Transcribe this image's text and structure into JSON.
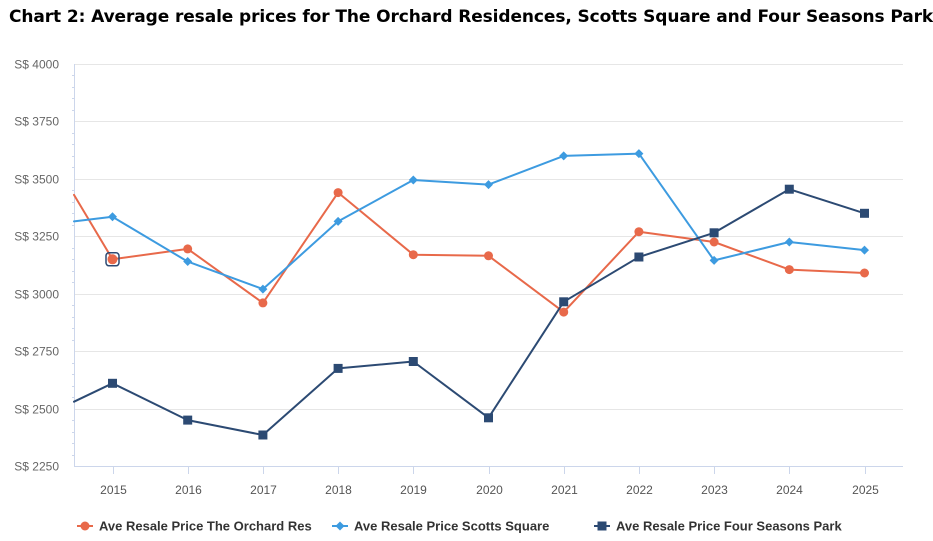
{
  "title": "Chart 2: Average resale prices for The Orchard Residences, Scotts Square and Four Seasons Park",
  "chart_data": {
    "type": "line",
    "title": "Chart 2: Average resale prices for The Orchard Residences, Scotts Square and Four Seasons Park",
    "xlabel": "",
    "ylabel": "",
    "categories": [
      "2015",
      "2016",
      "2017",
      "2018",
      "2019",
      "2020",
      "2021",
      "2022",
      "2023",
      "2024",
      "2025"
    ],
    "x_range": [
      2014.5,
      2025.5
    ],
    "ylim": [
      2250,
      4000
    ],
    "yticks": [
      2250,
      2500,
      2750,
      3000,
      3250,
      3500,
      3750,
      4000
    ],
    "ytick_prefix": "S$ ",
    "grid": true,
    "legend_position": "bottom",
    "series": [
      {
        "name": "Ave Resale Price The Orchard Res",
        "color": "#e8694a",
        "marker": "circle",
        "leading_value": 3430,
        "values": [
          3150,
          3195,
          2960,
          3440,
          3170,
          3165,
          2920,
          3270,
          3225,
          3105,
          3090
        ],
        "highlighted_index": 0
      },
      {
        "name": "Ave Resale Price Scotts Square",
        "color": "#3d9be0",
        "marker": "diamond",
        "leading_value": 3315,
        "values": [
          3335,
          3140,
          3020,
          3315,
          3495,
          3475,
          3600,
          3610,
          3145,
          3225,
          3190
        ]
      },
      {
        "name": "Ave Resale Price Four Seasons Park",
        "color": "#2c4a73",
        "marker": "square",
        "leading_value": 2530,
        "values": [
          2610,
          2450,
          2385,
          2675,
          2705,
          2460,
          2965,
          3160,
          3265,
          3455,
          3350
        ]
      }
    ]
  }
}
